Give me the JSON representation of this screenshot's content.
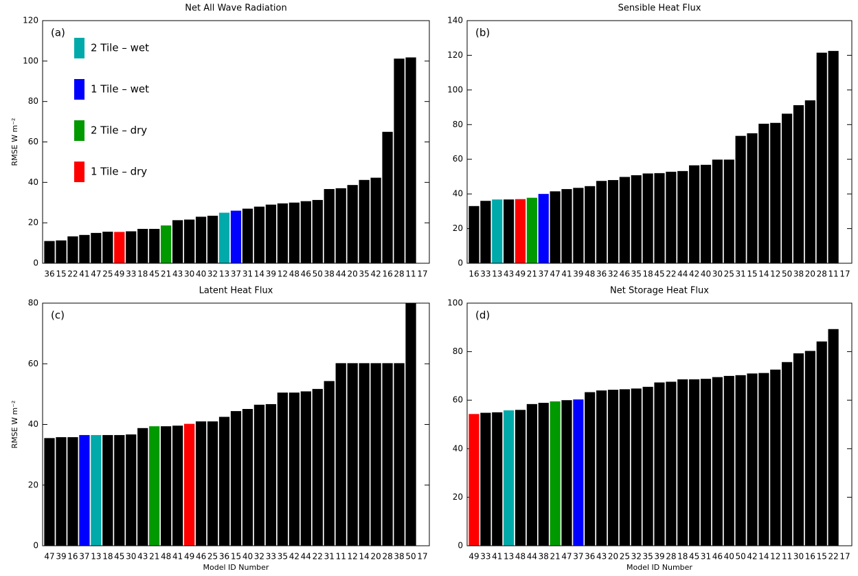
{
  "chart_data": [
    {
      "type": "bar",
      "title": "Net All Wave Radiation",
      "annotation": "(a)",
      "y_label": "RMSE W m⁻²",
      "categories": [
        "36",
        "15",
        "22",
        "41",
        "47",
        "25",
        "49",
        "33",
        "18",
        "45",
        "21",
        "43",
        "30",
        "40",
        "32",
        "13",
        "37",
        "31",
        "14",
        "39",
        "12",
        "48",
        "46",
        "50",
        "38",
        "44",
        "20",
        "35",
        "42",
        "16",
        "28",
        "11",
        "17"
      ],
      "values": [
        11,
        11.3,
        13.3,
        14,
        15,
        15.6,
        15.5,
        15.8,
        17,
        17,
        18.7,
        21.3,
        21.6,
        23,
        23.5,
        25,
        26,
        27,
        28,
        29,
        29.6,
        30,
        30.7,
        31.3,
        36.7,
        37.1,
        38.7,
        41.2,
        42.3,
        65,
        101.2,
        101.8,
        null
      ],
      "bar_colors": [
        "#000000",
        "#000000",
        "#000000",
        "#000000",
        "#000000",
        "#000000",
        "#ff0000",
        "#000000",
        "#000000",
        "#000000",
        "#009900",
        "#000000",
        "#000000",
        "#000000",
        "#000000",
        "#00aaaa",
        "#0000ff",
        "#000000",
        "#000000",
        "#000000",
        "#000000",
        "#000000",
        "#000000",
        "#000000",
        "#000000",
        "#000000",
        "#000000",
        "#000000",
        "#000000",
        "#000000",
        "#000000",
        "#000000",
        "#000000"
      ],
      "ylim": [
        0,
        120
      ],
      "yticks": [
        0,
        20,
        40,
        60,
        80,
        100,
        120
      ],
      "grid": false,
      "legend_position": "upper left",
      "legend": [
        {
          "label": "2 Tile – wet",
          "color": "#00aaaa"
        },
        {
          "label": "1 Tile – wet",
          "color": "#0000ff"
        },
        {
          "label": "2 Tile – dry",
          "color": "#009900"
        },
        {
          "label": "1 Tile – dry",
          "color": "#ff0000"
        }
      ]
    },
    {
      "type": "bar",
      "title": "Sensible Heat Flux",
      "annotation": "(b)",
      "categories": [
        "16",
        "33",
        "13",
        "43",
        "49",
        "21",
        "37",
        "47",
        "41",
        "39",
        "48",
        "36",
        "32",
        "46",
        "35",
        "18",
        "45",
        "22",
        "44",
        "42",
        "40",
        "30",
        "25",
        "31",
        "15",
        "14",
        "12",
        "50",
        "38",
        "20",
        "28",
        "11",
        "17"
      ],
      "values": [
        33,
        36,
        36.8,
        36.8,
        37,
        37.8,
        40,
        41.5,
        42.8,
        43.5,
        44.5,
        47.5,
        48,
        49.8,
        50.8,
        51.8,
        52,
        52.8,
        53.2,
        56.5,
        56.8,
        59.8,
        59.8,
        73.5,
        75,
        80.5,
        81,
        86.3,
        91.2,
        94,
        121.5,
        122.5,
        null
      ],
      "bar_colors": [
        "#000000",
        "#000000",
        "#00aaaa",
        "#000000",
        "#ff0000",
        "#009900",
        "#0000ff",
        "#000000",
        "#000000",
        "#000000",
        "#000000",
        "#000000",
        "#000000",
        "#000000",
        "#000000",
        "#000000",
        "#000000",
        "#000000",
        "#000000",
        "#000000",
        "#000000",
        "#000000",
        "#000000",
        "#000000",
        "#000000",
        "#000000",
        "#000000",
        "#000000",
        "#000000",
        "#000000",
        "#000000",
        "#000000",
        "#000000"
      ],
      "ylim": [
        0,
        140
      ],
      "yticks": [
        0,
        20,
        40,
        60,
        80,
        100,
        120,
        140
      ],
      "grid": false
    },
    {
      "type": "bar",
      "title": "Latent Heat Flux",
      "annotation": "(c)",
      "y_label": "RMSE W m⁻²",
      "x_label": "Model ID Number",
      "categories": [
        "47",
        "39",
        "16",
        "37",
        "13",
        "18",
        "45",
        "30",
        "43",
        "21",
        "48",
        "41",
        "49",
        "46",
        "25",
        "36",
        "15",
        "40",
        "32",
        "33",
        "35",
        "42",
        "44",
        "22",
        "31",
        "11",
        "12",
        "14",
        "20",
        "28",
        "38",
        "50",
        "17"
      ],
      "values": [
        35.5,
        35.8,
        35.8,
        36.5,
        36.5,
        36.5,
        36.5,
        36.7,
        38.8,
        39.4,
        39.4,
        39.6,
        40.2,
        41,
        41,
        42.5,
        44.4,
        45.1,
        46.5,
        46.7,
        50.5,
        50.5,
        50.9,
        51.7,
        54.3,
        60.2,
        60.2,
        60.2,
        60.2,
        60.2,
        60.2,
        80,
        null
      ],
      "bar_colors": [
        "#000000",
        "#000000",
        "#000000",
        "#0000ff",
        "#00aaaa",
        "#000000",
        "#000000",
        "#000000",
        "#000000",
        "#009900",
        "#000000",
        "#000000",
        "#ff0000",
        "#000000",
        "#000000",
        "#000000",
        "#000000",
        "#000000",
        "#000000",
        "#000000",
        "#000000",
        "#000000",
        "#000000",
        "#000000",
        "#000000",
        "#000000",
        "#000000",
        "#000000",
        "#000000",
        "#000000",
        "#000000",
        "#000000",
        "#000000"
      ],
      "ylim": [
        0,
        80
      ],
      "yticks": [
        0,
        20,
        40,
        60,
        80
      ],
      "grid": false
    },
    {
      "type": "bar",
      "title": "Net Storage Heat Flux",
      "annotation": "(d)",
      "x_label": "Model ID Number",
      "categories": [
        "49",
        "33",
        "41",
        "13",
        "48",
        "44",
        "38",
        "21",
        "47",
        "37",
        "36",
        "43",
        "20",
        "25",
        "32",
        "35",
        "39",
        "28",
        "18",
        "45",
        "31",
        "46",
        "40",
        "50",
        "42",
        "14",
        "12",
        "11",
        "30",
        "16",
        "15",
        "22",
        "17"
      ],
      "values": [
        54.3,
        54.8,
        55,
        55.8,
        56,
        58.4,
        58.9,
        59.5,
        60,
        60.3,
        63.3,
        64,
        64.3,
        64.5,
        64.8,
        65.5,
        67.3,
        67.6,
        68.6,
        68.6,
        68.8,
        69.5,
        70,
        70.3,
        71,
        71.2,
        72.6,
        75.7,
        79.3,
        80.3,
        84.2,
        89.3,
        null
      ],
      "bar_colors": [
        "#ff0000",
        "#000000",
        "#000000",
        "#00aaaa",
        "#000000",
        "#000000",
        "#000000",
        "#009900",
        "#000000",
        "#0000ff",
        "#000000",
        "#000000",
        "#000000",
        "#000000",
        "#000000",
        "#000000",
        "#000000",
        "#000000",
        "#000000",
        "#000000",
        "#000000",
        "#000000",
        "#000000",
        "#000000",
        "#000000",
        "#000000",
        "#000000",
        "#000000",
        "#000000",
        "#000000",
        "#000000",
        "#000000",
        "#000000"
      ],
      "ylim": [
        0,
        100
      ],
      "yticks": [
        0,
        20,
        40,
        60,
        80,
        100
      ],
      "grid": false
    }
  ]
}
